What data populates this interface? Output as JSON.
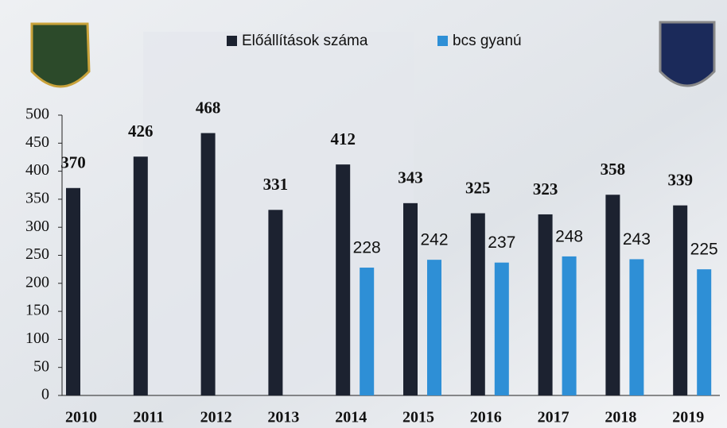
{
  "chart_data": {
    "type": "bar",
    "categories": [
      "2010",
      "2011",
      "2012",
      "2013",
      "2014",
      "2015",
      "2016",
      "2017",
      "2018",
      "2019"
    ],
    "series": [
      {
        "name": "Előállítások száma",
        "color": "#1c2230",
        "values": [
          370,
          426,
          468,
          331,
          412,
          343,
          325,
          323,
          358,
          339
        ]
      },
      {
        "name": "bcs gyanú",
        "color": "#2e8fd6",
        "values": [
          null,
          null,
          null,
          null,
          228,
          242,
          237,
          248,
          243,
          225
        ]
      }
    ],
    "ylim": [
      0,
      500
    ],
    "yticks": [
      0,
      50,
      100,
      150,
      200,
      250,
      300,
      350,
      400,
      450,
      500
    ]
  }
}
